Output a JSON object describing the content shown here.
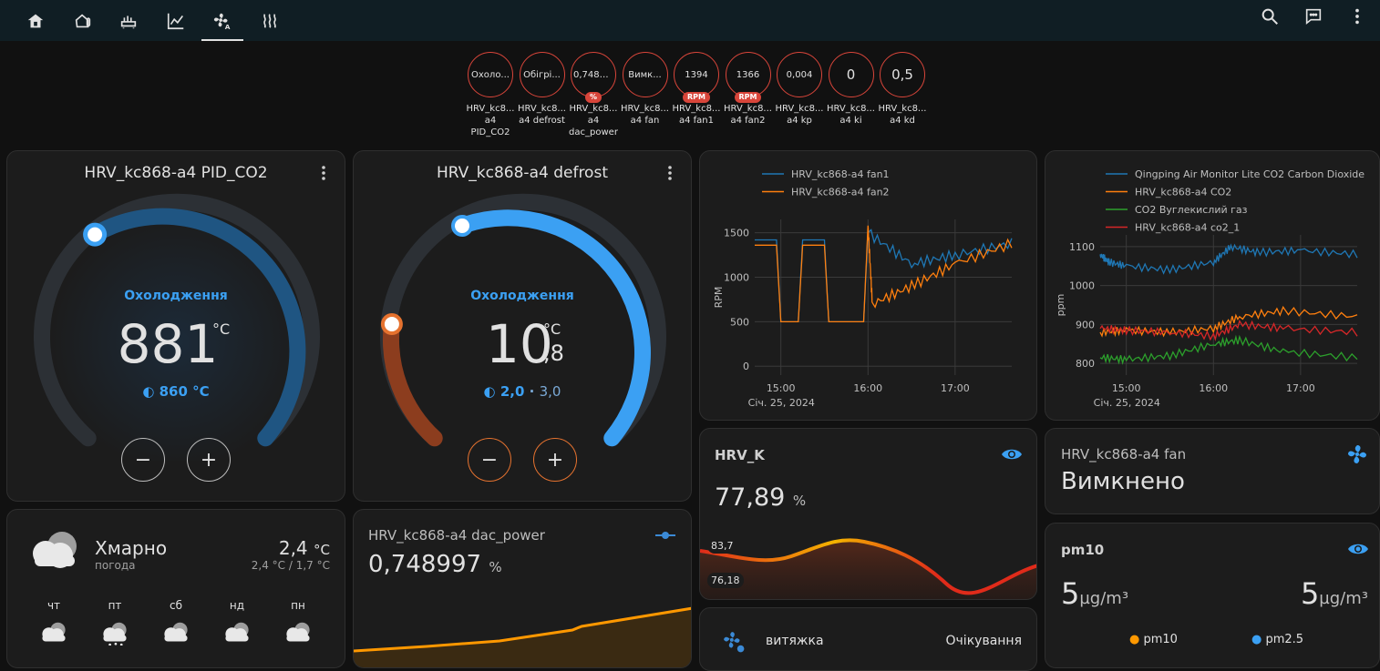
{
  "colors": {
    "topbar": "#101e24",
    "accent_blue": "#3ba0f3",
    "heat_orange": "#e5722f",
    "badge_red": "#d8453a",
    "card": "#1c1c1c"
  },
  "toolbar": {
    "tabs": [
      {
        "icon": "home-icon"
      },
      {
        "icon": "home-thermometer-icon"
      },
      {
        "icon": "radiator-icon"
      },
      {
        "icon": "chart-line-icon"
      },
      {
        "icon": "fan-auto-icon"
      },
      {
        "icon": "heat-waves-icon"
      }
    ],
    "actions": [
      {
        "icon": "search-icon"
      },
      {
        "icon": "assist-chat-icon"
      },
      {
        "icon": "menu-dots-icon"
      }
    ]
  },
  "badges": [
    {
      "value": "Охоло...",
      "unit": "",
      "label": "HRV_kc8... a4 PID_CO2"
    },
    {
      "value": "Обігрі...",
      "unit": "",
      "label": "HRV_kc8... a4 defrost"
    },
    {
      "value": "0,7489...",
      "unit": "%",
      "label": "HRV_kc8... a4 dac_power"
    },
    {
      "value": "Вимк...",
      "unit": "",
      "label": "HRV_kc8... a4 fan"
    },
    {
      "value": "1394",
      "unit": "RPM",
      "label": "HRV_kc8... a4 fan1"
    },
    {
      "value": "1366",
      "unit": "RPM",
      "label": "HRV_kc8... a4 fan2"
    },
    {
      "value": "0,004",
      "unit": "",
      "label": "HRV_kc8... a4 kp"
    },
    {
      "value": "0",
      "unit": "",
      "label": "HRV_kc8... a4 ki"
    },
    {
      "value": "0,5",
      "unit": "",
      "label": "HRV_kc8... a4 kd"
    }
  ],
  "thermostat1": {
    "title": "HRV_kc868-a4 PID_CO2",
    "mode": "Охолодження",
    "value": "881",
    "unit": "°C",
    "target": "860 °C",
    "fraction": 0.16
  },
  "thermostat2": {
    "title": "HRV_kc868-a4 defrost",
    "mode": "Охолодження",
    "value_int": "10",
    "value_dec": ",8",
    "unit": "°C",
    "target_low": "2,0",
    "target_sep": "·",
    "target_high": "3,0"
  },
  "weather": {
    "condition": "Хмарно",
    "name": "погода",
    "temp": "2,4",
    "temp_unit": "°C",
    "hilo": "2,4 °C / 1,7 °C",
    "days": [
      {
        "day": "чт",
        "icon": "cloudy-icon"
      },
      {
        "day": "пт",
        "icon": "snowy-icon"
      },
      {
        "day": "сб",
        "icon": "cloudy-icon"
      },
      {
        "day": "нд",
        "icon": "cloudy-icon"
      },
      {
        "day": "пн",
        "icon": "cloudy-icon"
      }
    ]
  },
  "dac_card": {
    "title": "HRV_kc868-a4 dac_power",
    "value": "0,748997",
    "unit": "%"
  },
  "chart_data": [
    {
      "type": "line",
      "series": [
        {
          "name": "HRV_kc868-a4 fan1",
          "color": "#1f77b4",
          "x": [
            14.7,
            14.95,
            15.0,
            15.2,
            15.25,
            15.5,
            15.55,
            15.95,
            16.0,
            16.5,
            17.0,
            17.65
          ],
          "y": [
            1420,
            1420,
            500,
            500,
            1420,
            1420,
            500,
            500,
            1500,
            1150,
            1250,
            1380
          ]
        },
        {
          "name": "HRV_kc868-a4 fan2",
          "color": "#ff7f0e",
          "x": [
            14.7,
            14.95,
            15.0,
            15.2,
            15.25,
            15.5,
            15.55,
            15.95,
            16.0,
            16.05,
            16.5,
            17.0,
            17.65
          ],
          "y": [
            1360,
            1360,
            500,
            500,
            1360,
            1360,
            500,
            500,
            1580,
            700,
            900,
            1150,
            1380
          ]
        }
      ],
      "xticks": [
        "15:00",
        "16:00",
        "17:00"
      ],
      "xsub": "Січ. 25, 2024",
      "yticks": [
        "0",
        "500",
        "1000",
        "1500"
      ],
      "ylabel": "RPM",
      "ylim": [
        -100,
        1650
      ],
      "grid": true
    },
    {
      "type": "line",
      "series": [
        {
          "name": "Qingping Air Monitor Lite CO2 Carbon Dioxide",
          "color": "#1f77b4",
          "x": [
            14.7,
            14.8,
            15.0,
            15.5,
            16.0,
            16.2,
            16.5,
            17.0,
            17.65
          ],
          "y": [
            1080,
            1060,
            1050,
            1040,
            1060,
            1100,
            1085,
            1090,
            1080
          ]
        },
        {
          "name": "HRV_kc868-a4 CO2",
          "color": "#ff7f0e",
          "x": [
            14.7,
            15.0,
            15.5,
            16.0,
            16.3,
            16.8,
            17.65
          ],
          "y": [
            880,
            885,
            880,
            890,
            920,
            935,
            920
          ]
        },
        {
          "name": "CO2 Вуглекислий газ",
          "color": "#2ca02c",
          "x": [
            14.7,
            15.0,
            15.5,
            16.0,
            16.3,
            16.8,
            17.65
          ],
          "y": [
            815,
            810,
            820,
            850,
            860,
            830,
            815
          ]
        },
        {
          "name": "HRV_kc868-a4 co2_1",
          "color": "#d62728",
          "x": [
            14.7,
            15.0,
            15.5,
            16.0,
            16.3,
            16.8,
            17.65
          ],
          "y": [
            890,
            885,
            880,
            870,
            900,
            890,
            880
          ]
        }
      ],
      "xticks": [
        "15:00",
        "16:00",
        "17:00"
      ],
      "xsub": "Січ. 25, 2024",
      "yticks": [
        "800",
        "900",
        "1000",
        "1100"
      ],
      "ylabel": "ppm",
      "ylim": [
        770,
        1130
      ],
      "grid": true
    }
  ],
  "hrv_k": {
    "name": "HRV_K",
    "value": "77,89",
    "unit": "%",
    "max": "83,7",
    "min": "76,18"
  },
  "fan_card": {
    "name": "HRV_kc868-a4 fan",
    "state": "Вимкнено"
  },
  "extract_row": {
    "label": "витяжка",
    "state": "Очікування"
  },
  "pm_card": {
    "title": "pm10",
    "v1": "5",
    "u1": "µg/m³",
    "v2": "5",
    "u2": "µg/m³",
    "legend": [
      "pm10",
      "pm2.5"
    ],
    "legend_colors": [
      "#ff9800",
      "#3ba0f3"
    ]
  }
}
